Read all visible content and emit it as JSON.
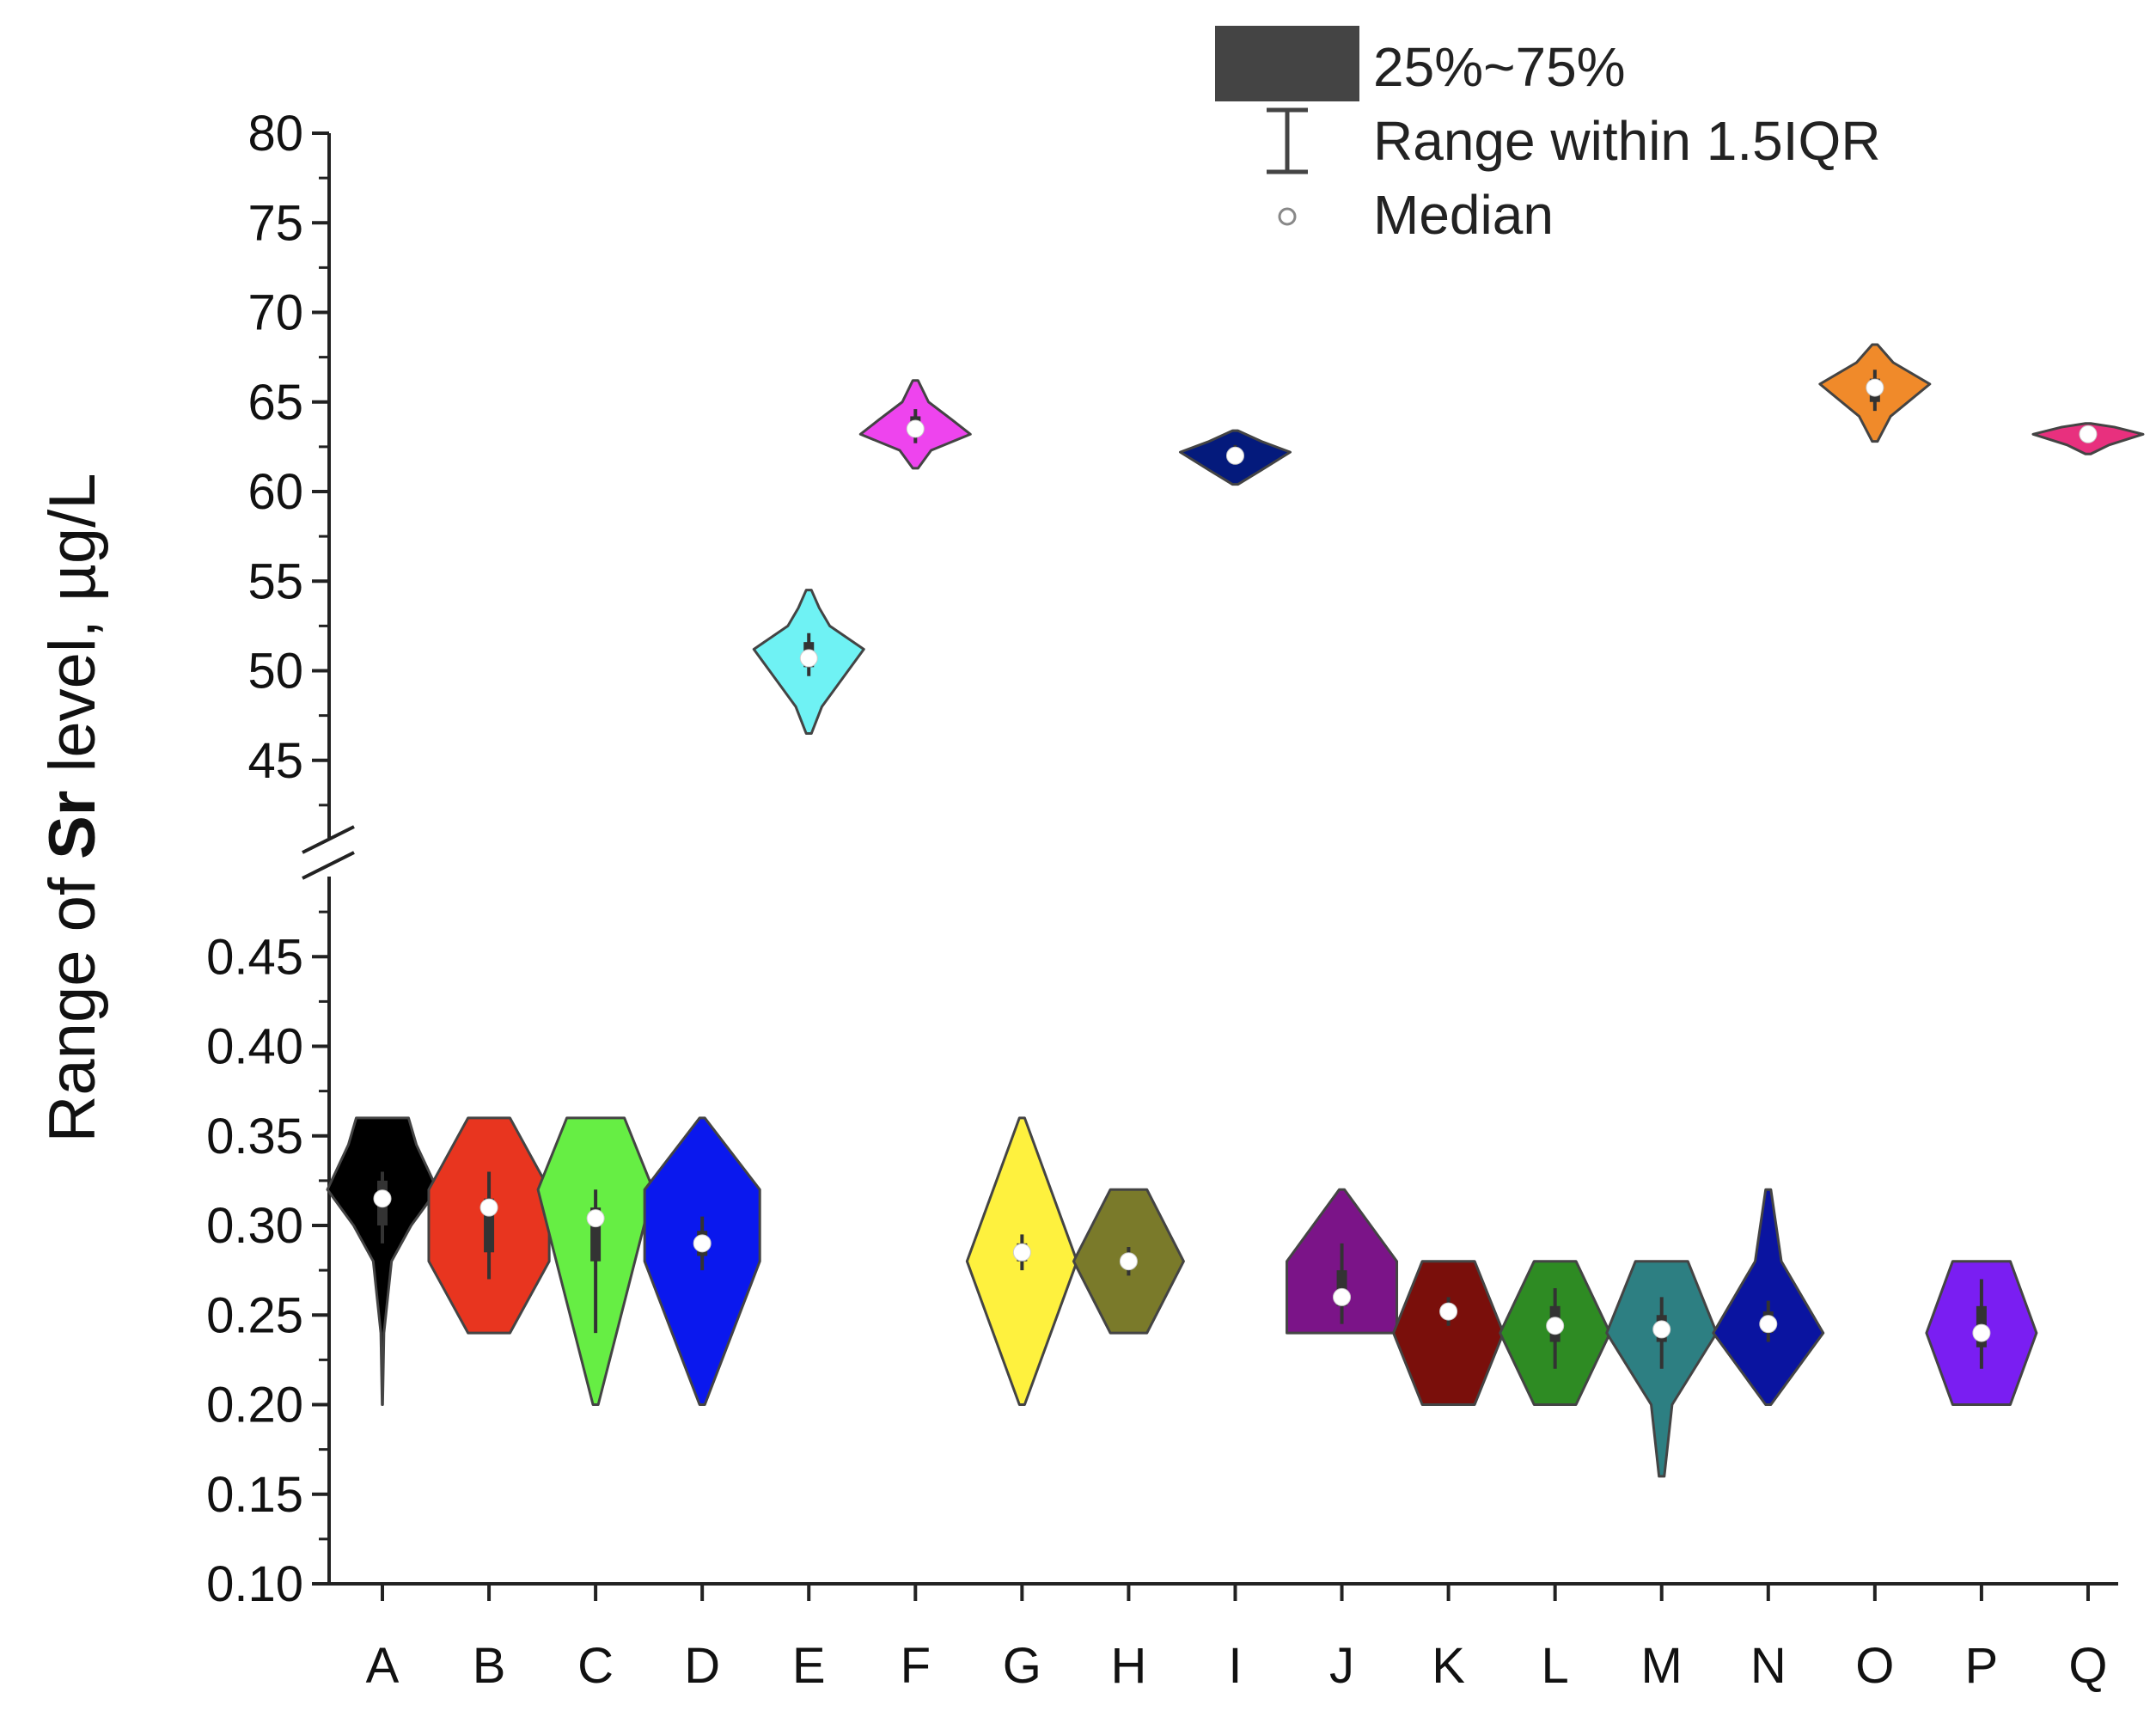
{
  "chart_data": {
    "type": "violin",
    "ylabel_parts": [
      "Range of ",
      "Sr",
      " level, µg/L"
    ],
    "xlabel": "",
    "title": "",
    "y_axis_upper": {
      "range": [
        40,
        80
      ],
      "ticks": [
        "80",
        "75",
        "70",
        "65",
        "60",
        "55",
        "50",
        "45"
      ],
      "tick_values": [
        80,
        75,
        70,
        65,
        60,
        55,
        50,
        45
      ]
    },
    "y_axis_lower": {
      "range": [
        0.1,
        0.49
      ],
      "ticks": [
        "0.45",
        "0.40",
        "0.35",
        "0.30",
        "0.25",
        "0.20",
        "0.15",
        "0.10"
      ],
      "tick_values": [
        0.45,
        0.4,
        0.35,
        0.3,
        0.25,
        0.2,
        0.15,
        0.1
      ]
    },
    "legend": {
      "box": "25%~75%",
      "whisker": "Range within 1.5IQR",
      "median": "Median",
      "placement": "top-right"
    },
    "categories": [
      "A",
      "B",
      "C",
      "D",
      "E",
      "F",
      "G",
      "H",
      "I",
      "J",
      "K",
      "L",
      "M",
      "N",
      "O",
      "P",
      "Q"
    ],
    "series": [
      {
        "name": "A",
        "color": "#000000",
        "segment": "lower",
        "min": 0.2,
        "max": 0.36,
        "median": 0.315,
        "q1": 0.3,
        "q3": 0.325,
        "whisker": [
          0.29,
          0.33
        ],
        "shape": [
          [
            0.2,
            0.002
          ],
          [
            0.24,
            0.012
          ],
          [
            0.28,
            0.07
          ],
          [
            0.3,
            0.22
          ],
          [
            0.32,
            0.42
          ],
          [
            0.345,
            0.26
          ],
          [
            0.36,
            0.2
          ]
        ]
      },
      {
        "name": "B",
        "color": "#e8351f",
        "segment": "lower",
        "min": 0.24,
        "max": 0.36,
        "median": 0.31,
        "q1": 0.285,
        "q3": 0.315,
        "whisker": [
          0.27,
          0.33
        ],
        "shape": [
          [
            0.24,
            0.16
          ],
          [
            0.28,
            0.46
          ],
          [
            0.32,
            0.46
          ],
          [
            0.36,
            0.16
          ]
        ]
      },
      {
        "name": "C",
        "color": "#66ee44",
        "segment": "lower",
        "min": 0.2,
        "max": 0.36,
        "median": 0.304,
        "q1": 0.28,
        "q3": 0.31,
        "whisker": [
          0.24,
          0.32
        ],
        "shape": [
          [
            0.2,
            0.02
          ],
          [
            0.32,
            0.44
          ],
          [
            0.36,
            0.22
          ]
        ]
      },
      {
        "name": "D",
        "color": "#0a18ee",
        "segment": "lower",
        "min": 0.2,
        "max": 0.36,
        "median": 0.29,
        "q1": 0.283,
        "q3": 0.297,
        "whisker": [
          0.275,
          0.305
        ],
        "shape": [
          [
            0.2,
            0.02
          ],
          [
            0.28,
            0.44
          ],
          [
            0.32,
            0.44
          ],
          [
            0.36,
            0.02
          ]
        ]
      },
      {
        "name": "E",
        "color": "#6ff2f4",
        "segment": "upper",
        "min": 46.5,
        "max": 54.5,
        "median": 50.7,
        "q1": 50.2,
        "q3": 51.6,
        "whisker": [
          49.7,
          52.1
        ],
        "shape": [
          [
            46.5,
            0.02
          ],
          [
            48.0,
            0.1
          ],
          [
            50.0,
            0.3
          ],
          [
            51.2,
            0.42
          ],
          [
            52.5,
            0.16
          ],
          [
            53.5,
            0.08
          ],
          [
            54.5,
            0.02
          ]
        ]
      },
      {
        "name": "F",
        "color": "#ee44ee",
        "segment": "upper",
        "min": 61.3,
        "max": 66.2,
        "median": 63.5,
        "q1": 63.2,
        "q3": 64.2,
        "whisker": [
          62.7,
          64.6
        ],
        "shape": [
          [
            61.3,
            0.02
          ],
          [
            62.3,
            0.12
          ],
          [
            63.2,
            0.42
          ],
          [
            64.0,
            0.28
          ],
          [
            65.0,
            0.1
          ],
          [
            66.2,
            0.02
          ]
        ]
      },
      {
        "name": "G",
        "color": "#fef13e",
        "segment": "lower",
        "min": 0.2,
        "max": 0.36,
        "median": 0.285,
        "q1": 0.28,
        "q3": 0.29,
        "whisker": [
          0.275,
          0.295
        ],
        "shape": [
          [
            0.2,
            0.02
          ],
          [
            0.28,
            0.42
          ],
          [
            0.36,
            0.02
          ]
        ]
      },
      {
        "name": "H",
        "color": "#7a7a2a",
        "segment": "lower",
        "min": 0.24,
        "max": 0.32,
        "median": 0.28,
        "q1": 0.276,
        "q3": 0.284,
        "whisker": [
          0.272,
          0.288
        ],
        "shape": [
          [
            0.24,
            0.14
          ],
          [
            0.28,
            0.42
          ],
          [
            0.32,
            0.14
          ]
        ]
      },
      {
        "name": "I",
        "color": "#041a7c",
        "segment": "upper",
        "min": 60.4,
        "max": 63.4,
        "median": 62.0,
        "q1": 61.8,
        "q3": 62.3,
        "whisker": [
          61.5,
          62.6
        ],
        "shape": [
          [
            60.4,
            0.02
          ],
          [
            61.2,
            0.2
          ],
          [
            62.2,
            0.42
          ],
          [
            62.8,
            0.2
          ],
          [
            63.4,
            0.02
          ]
        ]
      },
      {
        "name": "J",
        "color": "#7b1488",
        "segment": "lower",
        "min": 0.24,
        "max": 0.32,
        "median": 0.26,
        "q1": 0.255,
        "q3": 0.275,
        "whisker": [
          0.245,
          0.29
        ],
        "shape": [
          [
            0.24,
            0.42
          ],
          [
            0.28,
            0.42
          ],
          [
            0.32,
            0.02
          ]
        ]
      },
      {
        "name": "K",
        "color": "#7a0f0b",
        "segment": "lower",
        "min": 0.2,
        "max": 0.28,
        "median": 0.252,
        "q1": 0.248,
        "q3": 0.256,
        "whisker": [
          0.244,
          0.26
        ],
        "shape": [
          [
            0.2,
            0.2
          ],
          [
            0.24,
            0.42
          ],
          [
            0.28,
            0.2
          ]
        ]
      },
      {
        "name": "L",
        "color": "#2e8b23",
        "segment": "lower",
        "min": 0.2,
        "max": 0.28,
        "median": 0.244,
        "q1": 0.235,
        "q3": 0.255,
        "whisker": [
          0.22,
          0.265
        ],
        "shape": [
          [
            0.2,
            0.16
          ],
          [
            0.24,
            0.42
          ],
          [
            0.28,
            0.16
          ]
        ]
      },
      {
        "name": "M",
        "color": "#2d7f82",
        "segment": "lower",
        "min": 0.16,
        "max": 0.28,
        "median": 0.242,
        "q1": 0.235,
        "q3": 0.25,
        "whisker": [
          0.22,
          0.26
        ],
        "shape": [
          [
            0.16,
            0.02
          ],
          [
            0.2,
            0.08
          ],
          [
            0.24,
            0.42
          ],
          [
            0.28,
            0.2
          ]
        ]
      },
      {
        "name": "N",
        "color": "#0a14a0",
        "segment": "lower",
        "min": 0.2,
        "max": 0.32,
        "median": 0.245,
        "q1": 0.24,
        "q3": 0.252,
        "whisker": [
          0.235,
          0.258
        ],
        "shape": [
          [
            0.2,
            0.02
          ],
          [
            0.24,
            0.42
          ],
          [
            0.28,
            0.1
          ],
          [
            0.32,
            0.02
          ]
        ]
      },
      {
        "name": "O",
        "color": "#f08a2a",
        "segment": "upper",
        "min": 62.8,
        "max": 68.2,
        "median": 65.8,
        "q1": 65.0,
        "q3": 66.3,
        "whisker": [
          64.5,
          66.8
        ],
        "shape": [
          [
            62.8,
            0.02
          ],
          [
            64.2,
            0.12
          ],
          [
            66.0,
            0.42
          ],
          [
            67.2,
            0.14
          ],
          [
            68.2,
            0.02
          ]
        ]
      },
      {
        "name": "P",
        "color": "#7a1ef2",
        "segment": "lower",
        "min": 0.2,
        "max": 0.28,
        "median": 0.24,
        "q1": 0.232,
        "q3": 0.255,
        "whisker": [
          0.22,
          0.27
        ],
        "shape": [
          [
            0.2,
            0.22
          ],
          [
            0.24,
            0.42
          ],
          [
            0.28,
            0.22
          ]
        ]
      },
      {
        "name": "Q",
        "color": "#e8307e",
        "segment": "upper",
        "min": 62.1,
        "max": 63.8,
        "median": 63.2,
        "q1": 63.0,
        "q3": 63.35,
        "whisker": [
          62.9,
          63.5
        ],
        "shape": [
          [
            62.1,
            0.02
          ],
          [
            62.6,
            0.16
          ],
          [
            63.2,
            0.42
          ],
          [
            63.6,
            0.2
          ],
          [
            63.8,
            0.02
          ]
        ]
      }
    ]
  }
}
